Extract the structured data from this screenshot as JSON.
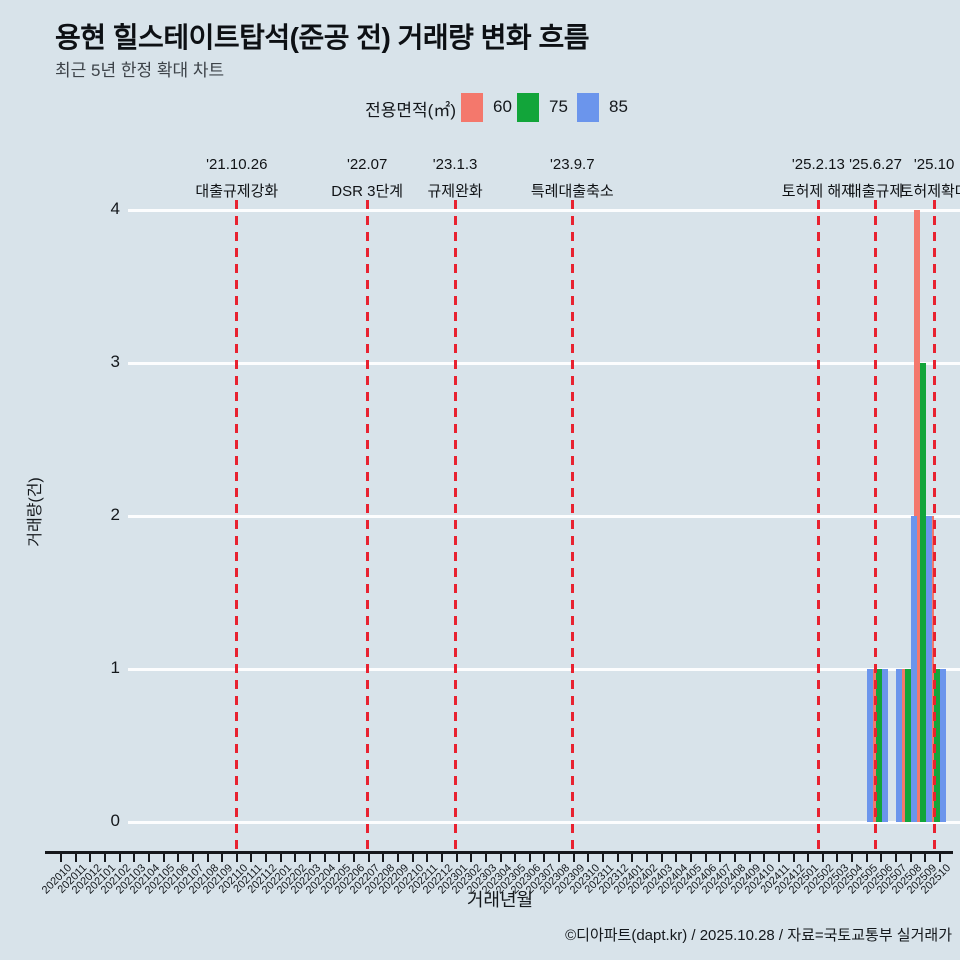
{
  "title": "용현 힐스테이트탑석(준공 전) 거래량 변화 흐름",
  "subtitle": "최근 5년 한정 확대 차트",
  "legend": {
    "label": "전용면적(㎡)",
    "items": [
      {
        "name": "60",
        "color": "#f4786c"
      },
      {
        "name": "75",
        "color": "#12a53a"
      },
      {
        "name": "85",
        "color": "#6b95ec"
      }
    ]
  },
  "footer": "©디아파트(dapt.kr) / 2025.10.28 / 자료=국토교통부 실거래가",
  "colors": {
    "background": "#d8e3ea",
    "gridline": "#fcfdfe",
    "event_line": "#e82230",
    "axis": "#16181c",
    "series_60": "#f4786c",
    "series_75": "#12a53a",
    "series_85": "#6b95ec"
  },
  "chart_data": {
    "type": "bar",
    "title": "용현 힐스테이트탑석(준공 전) 거래량 변화 흐름",
    "subtitle": "최근 5년 한정 확대 차트",
    "xlabel": "거래년월",
    "ylabel": "거래량(건)",
    "ylim": [
      0,
      4
    ],
    "yticks": [
      0,
      1,
      2,
      3,
      4
    ],
    "grid": "horizontal",
    "legend_position": "top-center",
    "legend_title": "전용면적(㎡)",
    "categories": [
      "202010",
      "202011",
      "202012",
      "202101",
      "202102",
      "202103",
      "202104",
      "202105",
      "202106",
      "202107",
      "202108",
      "202109",
      "202110",
      "202111",
      "202112",
      "202201",
      "202202",
      "202203",
      "202204",
      "202205",
      "202206",
      "202207",
      "202208",
      "202209",
      "202210",
      "202211",
      "202212",
      "202301",
      "202302",
      "202303",
      "202304",
      "202305",
      "202306",
      "202307",
      "202308",
      "202309",
      "202310",
      "202311",
      "202312",
      "202401",
      "202402",
      "202403",
      "202404",
      "202405",
      "202406",
      "202407",
      "202408",
      "202409",
      "202410",
      "202411",
      "202412",
      "202501",
      "202502",
      "202503",
      "202504",
      "202505",
      "202506",
      "202507",
      "202508",
      "202509",
      "202510"
    ],
    "series": [
      {
        "name": "60",
        "color": "#f4786c",
        "values": [
          0,
          0,
          0,
          0,
          0,
          0,
          0,
          0,
          0,
          0,
          0,
          0,
          0,
          0,
          0,
          0,
          0,
          0,
          0,
          0,
          0,
          0,
          0,
          0,
          0,
          0,
          0,
          0,
          0,
          0,
          0,
          0,
          0,
          0,
          0,
          0,
          0,
          0,
          0,
          0,
          0,
          0,
          0,
          0,
          0,
          0,
          0,
          0,
          0,
          0,
          0,
          0,
          0,
          0,
          0,
          1,
          0,
          1,
          4,
          2,
          0
        ]
      },
      {
        "name": "75",
        "color": "#12a53a",
        "values": [
          0,
          0,
          0,
          0,
          0,
          0,
          0,
          0,
          0,
          0,
          0,
          0,
          0,
          0,
          0,
          0,
          0,
          0,
          0,
          0,
          0,
          0,
          0,
          0,
          0,
          0,
          0,
          0,
          0,
          0,
          0,
          0,
          0,
          0,
          0,
          0,
          0,
          0,
          0,
          0,
          0,
          0,
          0,
          0,
          0,
          0,
          0,
          0,
          0,
          0,
          0,
          0,
          0,
          0,
          0,
          1,
          0,
          1,
          3,
          1,
          0
        ]
      },
      {
        "name": "85",
        "color": "#6b95ec",
        "values": [
          0,
          0,
          0,
          0,
          0,
          0,
          0,
          0,
          0,
          0,
          0,
          0,
          0,
          0,
          0,
          0,
          0,
          0,
          0,
          0,
          0,
          0,
          0,
          0,
          0,
          0,
          0,
          0,
          0,
          0,
          0,
          0,
          0,
          0,
          0,
          0,
          0,
          0,
          0,
          0,
          0,
          0,
          0,
          0,
          0,
          0,
          0,
          0,
          0,
          0,
          0,
          0,
          0,
          0,
          1,
          1,
          1,
          2,
          2,
          1,
          0
        ]
      }
    ],
    "annotations": [
      {
        "date": "'21.10.26",
        "label": "대출규제강화",
        "x_index": 12.0
      },
      {
        "date": "'22.07",
        "label": "DSR 3단계",
        "x_index": 20.9
      },
      {
        "date": "'23.1.3",
        "label": "규제완화",
        "x_index": 26.9
      },
      {
        "date": "'23.9.7",
        "label": "특례대출축소",
        "x_index": 34.9
      },
      {
        "date": "'25.2.13",
        "label": "토허제 해제",
        "x_index": 51.7
      },
      {
        "date": "'25.6.27",
        "label": "대출규제",
        "x_index": 55.6
      },
      {
        "date": "'25.10",
        "label": "토허제확대",
        "x_index": 59.6
      }
    ]
  }
}
